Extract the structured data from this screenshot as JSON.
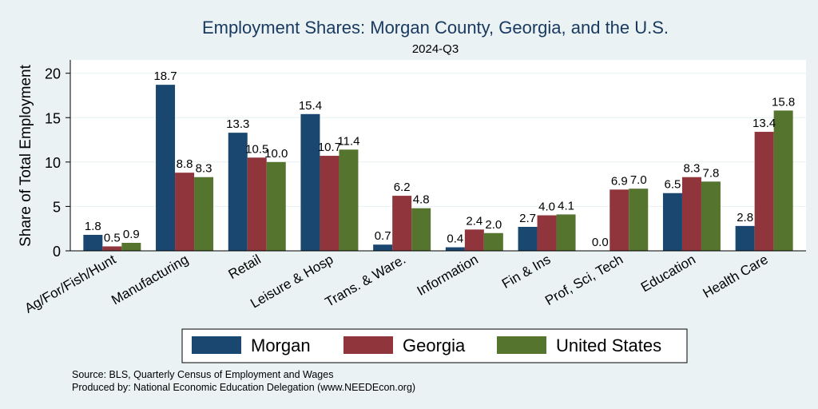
{
  "chart_data": {
    "type": "bar",
    "title": "Employment Shares: Morgan County, Georgia, and the U.S.",
    "subtitle": "2024-Q3",
    "ylabel": "Share of Total Employment",
    "xlabel": "",
    "ylim": [
      0,
      21.5
    ],
    "yticks": [
      0,
      5,
      10,
      15,
      20
    ],
    "grid": true,
    "legend_position": "bottom",
    "categories": [
      "Ag/For/Fish/Hunt",
      "Manufacturing",
      "Retail",
      "Leisure & Hosp",
      "Trans. & Ware.",
      "Information",
      "Fin & Ins",
      "Prof, Sci, Tech",
      "Education",
      "Health Care"
    ],
    "series": [
      {
        "name": "Morgan",
        "color": "#1a476f",
        "values": [
          1.8,
          18.7,
          13.3,
          15.4,
          0.7,
          0.4,
          2.7,
          0.0,
          6.5,
          2.8
        ]
      },
      {
        "name": "Georgia",
        "color": "#90353b",
        "values": [
          0.5,
          8.8,
          10.5,
          10.7,
          6.2,
          2.4,
          4.0,
          6.9,
          8.3,
          13.4
        ]
      },
      {
        "name": "United States",
        "color": "#55752f",
        "values": [
          0.9,
          8.3,
          10.0,
          11.4,
          4.8,
          2.0,
          4.1,
          7.0,
          7.8,
          15.8
        ]
      }
    ]
  },
  "footer": {
    "source": "Source: BLS, Quarterly Census of Employment and Wages",
    "produced_by": "Produced by: National Economic Education Delegation (www.NEEDEcon.org)"
  }
}
